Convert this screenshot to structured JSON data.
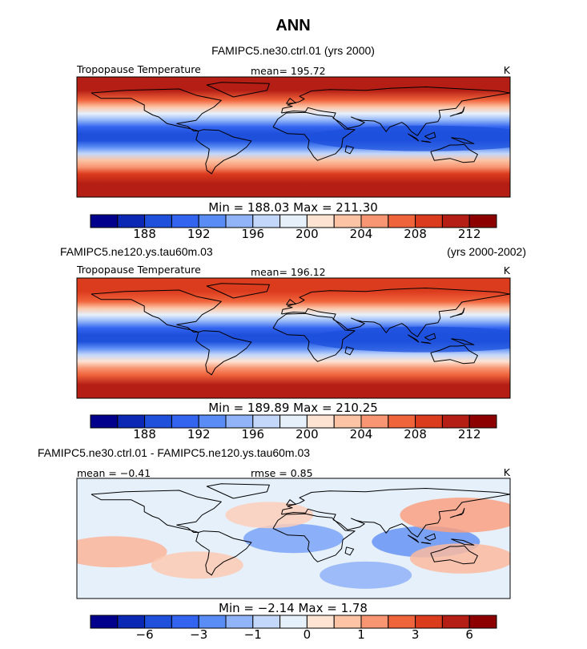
{
  "figure": {
    "title": "ANN",
    "panels": [
      {
        "heading": "FAMIPC5.ne30.ctrl.01 (yrs 2000)",
        "heading_right": "",
        "left_label": "Tropopause Temperature",
        "center_label": "mean=  195.72",
        "rmse_label": "",
        "units": "K",
        "min_max": "Min  =  188.03  Max  =  211.30"
      },
      {
        "heading": "FAMIPC5.ne120.ys.tau60m.03",
        "heading_right": "(yrs 2000-2002)",
        "left_label": "Tropopause Temperature",
        "center_label": "mean=  196.12",
        "rmse_label": "",
        "units": "K",
        "min_max": "Min  =  189.89  Max  =  210.25"
      },
      {
        "heading": "FAMIPC5.ne30.ctrl.01 - FAMIPC5.ne120.ys.tau60m.03",
        "heading_right": "",
        "left_label": "mean =   −0.41",
        "center_label": "rmse =    0.85",
        "rmse_label": "",
        "units": "K",
        "min_max": "Min  =   −2.14  Max  =     1.78"
      }
    ]
  },
  "chart_data": [
    {
      "type": "heatmap",
      "title": "FAMIPC5.ne30.ctrl.01 (yrs 2000)",
      "variable": "Tropopause Temperature",
      "units": "K",
      "mean": 195.72,
      "min": 188.03,
      "max": 211.3,
      "xlim": [
        -180,
        180
      ],
      "ylim": [
        -90,
        90
      ],
      "colorbar": {
        "tick_labels": [
          "188",
          "192",
          "196",
          "200",
          "204",
          "208",
          "212"
        ],
        "tick_after_box": [
          1,
          3,
          5,
          7,
          9,
          11,
          13
        ],
        "colors": [
          "#00008c",
          "#0a28b4",
          "#1e50dc",
          "#3264f0",
          "#5a8cf5",
          "#91b4f8",
          "#c3d7fa",
          "#e6f0fb",
          "#fde3d2",
          "#fcc4a5",
          "#f89673",
          "#f0643c",
          "#dc3c1e",
          "#b41e14",
          "#8c0000"
        ]
      },
      "profile": {
        "lat": [
          -90,
          -70,
          -55,
          -45,
          -35,
          -25,
          -15,
          -5,
          5,
          15,
          25,
          35,
          45,
          55,
          70,
          90
        ],
        "temp": [
          212,
          212,
          209,
          206,
          203,
          199,
          195,
          191,
          190.5,
          192,
          196,
          200,
          204,
          208,
          211,
          212
        ]
      }
    },
    {
      "type": "heatmap",
      "title": "FAMIPC5.ne120.ys.tau60m.03 (yrs 2000-2002)",
      "variable": "Tropopause Temperature",
      "units": "K",
      "mean": 196.12,
      "min": 189.89,
      "max": 210.25,
      "xlim": [
        -180,
        180
      ],
      "ylim": [
        -90,
        90
      ],
      "colorbar": {
        "tick_labels": [
          "188",
          "192",
          "196",
          "200",
          "204",
          "208",
          "212"
        ],
        "tick_after_box": [
          1,
          3,
          5,
          7,
          9,
          11,
          13
        ],
        "colors": [
          "#00008c",
          "#0a28b4",
          "#1e50dc",
          "#3264f0",
          "#5a8cf5",
          "#91b4f8",
          "#c3d7fa",
          "#e6f0fb",
          "#fde3d2",
          "#fcc4a5",
          "#f89673",
          "#f0643c",
          "#dc3c1e",
          "#b41e14",
          "#8c0000"
        ]
      },
      "profile": {
        "lat": [
          -90,
          -70,
          -55,
          -45,
          -35,
          -25,
          -15,
          -5,
          5,
          15,
          25,
          35,
          45,
          55,
          70,
          90
        ],
        "temp": [
          211,
          211,
          208,
          205,
          202,
          198.5,
          195,
          191.5,
          191,
          192.5,
          196,
          200,
          204,
          207.5,
          210,
          210
        ]
      }
    },
    {
      "type": "heatmap",
      "title": "FAMIPC5.ne30.ctrl.01 - FAMIPC5.ne120.ys.tau60m.03",
      "variable": "difference",
      "units": "K",
      "mean": -0.41,
      "rmse": 0.85,
      "min": -2.14,
      "max": 1.78,
      "xlim": [
        -180,
        180
      ],
      "ylim": [
        -90,
        90
      ],
      "colorbar": {
        "tick_labels": [
          "−6",
          "−3",
          "−1",
          "0",
          "1",
          "3",
          "6"
        ],
        "tick_after_box": [
          1,
          3,
          5,
          7,
          9,
          11,
          13
        ],
        "colors": [
          "#00008c",
          "#0a28b4",
          "#1e50dc",
          "#3264f0",
          "#5a8cf5",
          "#91b4f8",
          "#c3d7fa",
          "#e6f0fb",
          "#fde3d2",
          "#fcc4a5",
          "#f89673",
          "#f0643c",
          "#dc3c1e",
          "#b41e14",
          "#8c0000"
        ]
      },
      "anomalies": [
        {
          "lon": 0,
          "lat": 0,
          "value": -0.7
        },
        {
          "lon": 110,
          "lat": -5,
          "value": -0.9
        },
        {
          "lon": -20,
          "lat": 35,
          "value": 0.4
        },
        {
          "lon": 140,
          "lat": 35,
          "value": 1.3
        },
        {
          "lon": -150,
          "lat": -20,
          "value": 0.9
        },
        {
          "lon": -80,
          "lat": -40,
          "value": 0.5
        },
        {
          "lon": 140,
          "lat": -30,
          "value": 0.8
        },
        {
          "lon": 60,
          "lat": -55,
          "value": -0.5
        }
      ]
    }
  ]
}
